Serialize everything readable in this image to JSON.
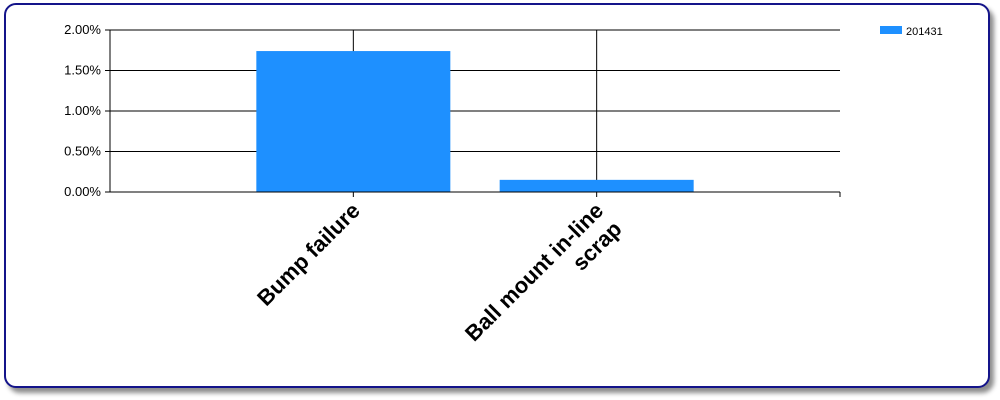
{
  "chart_data": {
    "type": "bar",
    "categories": [
      "Bump failure",
      "Ball mount in-line\nscrap"
    ],
    "series": [
      {
        "name": "201431",
        "values": [
          1.74,
          0.15
        ],
        "color": "#1e90ff"
      }
    ],
    "unit": "%",
    "ylim": [
      0,
      2
    ],
    "yticks": [
      0,
      0.5,
      1,
      1.5,
      2
    ],
    "ytick_labels": [
      "0.00%",
      "0.50%",
      "1.00%",
      "1.50%",
      "2.00%"
    ],
    "grid": true,
    "legend_position": "top-right",
    "title": "",
    "xlabel": "",
    "ylabel": ""
  }
}
